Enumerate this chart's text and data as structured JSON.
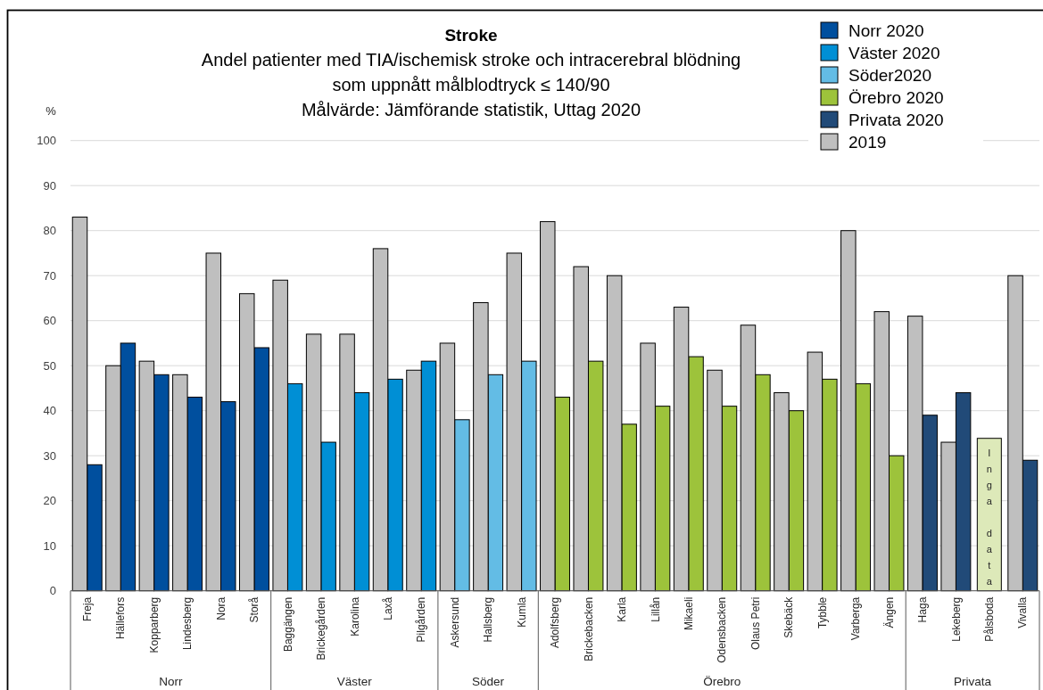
{
  "chart_data": {
    "type": "bar",
    "title": "Stroke",
    "subtitle": "Andel patienter med TIA/ischemisk stroke och intracerebral blödning\nsom uppnått målblodtryck ≤ 140/90\nMålvärde: Jämförande statistik, Uttag 2020",
    "ylabel": "%",
    "categories": [
      "Freja",
      "Hällefors",
      "Kopparberg",
      "Lindesberg",
      "Nora",
      "Storå",
      "Baggängen",
      "Brickegården",
      "Karolina",
      "Laxå",
      "Pilgården",
      "Askersund",
      "Hallsberg",
      "Kumla",
      "Adolfsberg",
      "Brickebacken",
      "Karla",
      "Lillån",
      "Mikaeli",
      "Odensbacken",
      "Olaus Petri",
      "Skebäck",
      "Tybble",
      "Varberga",
      "Ängen",
      "Haga",
      "Lekeberg",
      "Pålsboda",
      "Vivalla"
    ],
    "series": [
      {
        "name": "Norr 2020",
        "color": "#004f9e",
        "values": [
          28,
          55,
          48,
          43,
          42,
          54,
          null,
          null,
          null,
          null,
          null,
          null,
          null,
          null,
          null,
          null,
          null,
          null,
          null,
          null,
          null,
          null,
          null,
          null,
          null,
          null,
          null,
          null,
          null
        ]
      },
      {
        "name": "Väster 2020",
        "color": "#008fd5",
        "values": [
          null,
          null,
          null,
          null,
          null,
          null,
          46,
          33,
          44,
          47,
          51,
          null,
          null,
          null,
          null,
          null,
          null,
          null,
          null,
          null,
          null,
          null,
          null,
          null,
          null,
          null,
          null,
          null,
          null
        ]
      },
      {
        "name": "Söder2020",
        "color": "#63bce5",
        "values": [
          null,
          null,
          null,
          null,
          null,
          null,
          null,
          null,
          null,
          null,
          null,
          38,
          48,
          51,
          null,
          null,
          null,
          null,
          null,
          null,
          null,
          null,
          null,
          null,
          null,
          null,
          null,
          null,
          null
        ]
      },
      {
        "name": "Örebro 2020",
        "color": "#9dc33b",
        "values": [
          null,
          null,
          null,
          null,
          null,
          null,
          null,
          null,
          null,
          null,
          null,
          null,
          null,
          null,
          43,
          51,
          37,
          41,
          52,
          41,
          48,
          40,
          47,
          46,
          30,
          null,
          null,
          null,
          null
        ]
      },
      {
        "name": "Privata 2020",
        "color": "#214a78",
        "values": [
          null,
          null,
          null,
          null,
          null,
          null,
          null,
          null,
          null,
          null,
          null,
          null,
          null,
          null,
          null,
          null,
          null,
          null,
          null,
          null,
          null,
          null,
          null,
          null,
          null,
          39,
          44,
          null,
          29
        ]
      },
      {
        "name": "2019",
        "color": "#bfbfbf",
        "values": [
          83,
          50,
          51,
          48,
          75,
          66,
          69,
          57,
          57,
          76,
          49,
          55,
          64,
          75,
          82,
          72,
          70,
          55,
          63,
          49,
          59,
          44,
          53,
          80,
          62,
          61,
          33,
          null,
          70
        ]
      }
    ],
    "ylim": [
      0,
      100
    ],
    "yticks": [
      0,
      10,
      20,
      30,
      40,
      50,
      60,
      70,
      80,
      90,
      100
    ],
    "grid": "y",
    "legend": "top right",
    "annotations": [
      "Norr",
      "Väster",
      "Söder",
      "Örebro",
      "Privata",
      "Inga data"
    ]
  }
}
